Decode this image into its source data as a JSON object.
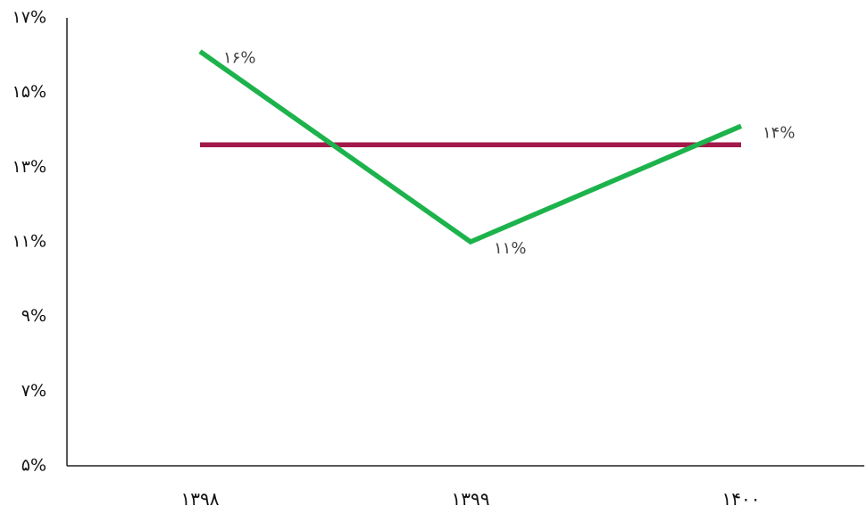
{
  "chart_data": {
    "type": "line",
    "title": "",
    "xlabel": "",
    "ylabel": "",
    "categories": [
      "۱۳۹۸",
      "۱۳۹۹",
      "۱۴۰۰"
    ],
    "series": [
      {
        "color": "#1db34c",
        "values": [
          16.1,
          11.0,
          14.1
        ],
        "data_labels": [
          "۱۶%",
          "۱۱%",
          "۱۴%"
        ]
      },
      {
        "color": "#a3194a",
        "values": [
          13.6,
          13.6,
          13.6
        ],
        "data_labels": [
          "",
          "",
          ""
        ]
      }
    ],
    "ylim": [
      5,
      17
    ],
    "yticks": [
      5,
      7,
      9,
      11,
      13,
      15,
      17
    ],
    "ytick_labels": [
      "۵%",
      "۷%",
      "۹%",
      "۱۱%",
      "۱۳%",
      "۱۵%",
      "۱۷%"
    ],
    "grid": false,
    "legend": "none"
  }
}
